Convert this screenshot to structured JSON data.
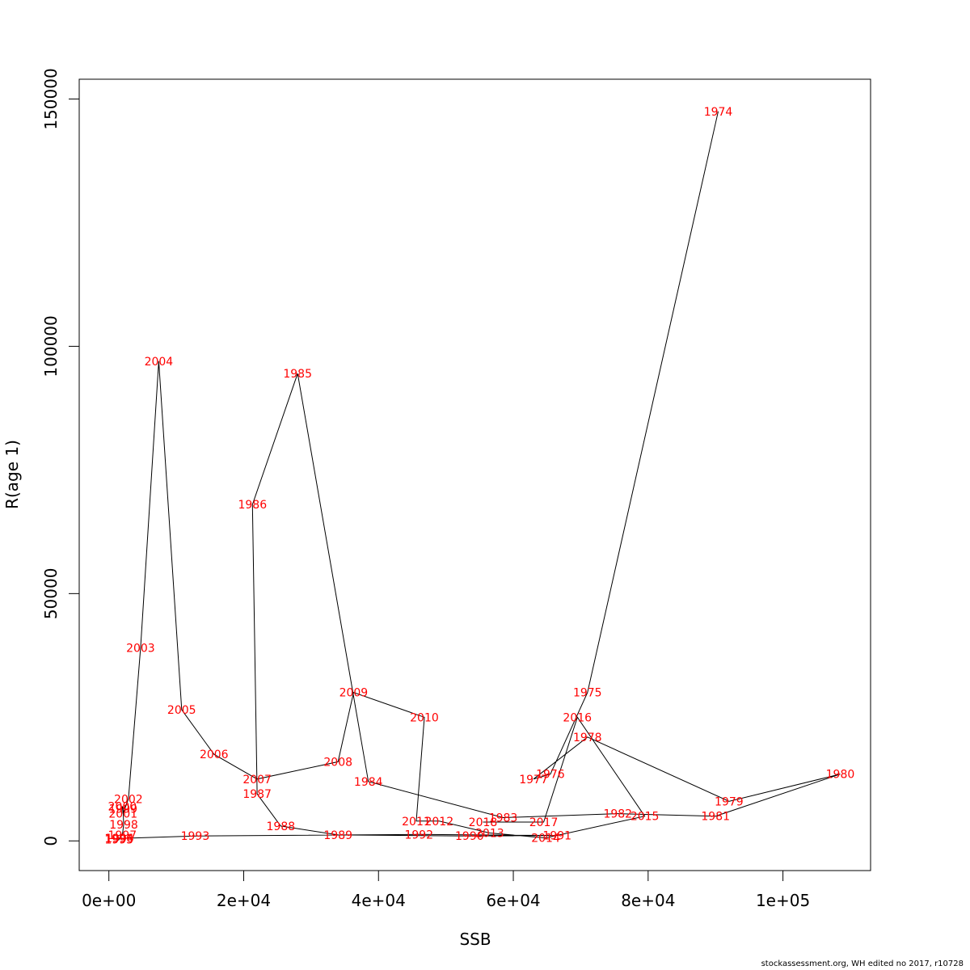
{
  "chart_data": {
    "type": "line",
    "title": "",
    "xlabel": "SSB",
    "ylabel": "R(age 1)",
    "xlim": [
      -4400,
      113000
    ],
    "ylim": [
      -6000,
      154000
    ],
    "x_ticks": [
      0,
      20000,
      40000,
      60000,
      80000,
      100000
    ],
    "x_tick_labels": [
      "0e+00",
      "2e+04",
      "4e+04",
      "6e+04",
      "8e+04",
      "1e+05"
    ],
    "y_ticks": [
      0,
      50000,
      100000,
      150000
    ],
    "y_tick_labels": [
      "0",
      "50000",
      "100000",
      "150000"
    ],
    "label_color": "#ff0000",
    "line_color": "#000000",
    "grid": false,
    "series": [
      {
        "points": [
          {
            "label": "1974",
            "x": 90400,
            "y": 147500
          },
          {
            "label": "1975",
            "x": 71000,
            "y": 30000
          },
          {
            "label": "1976",
            "x": 65500,
            "y": 13500
          },
          {
            "label": "1977",
            "x": 63000,
            "y": 12500
          },
          {
            "label": "1978",
            "x": 71000,
            "y": 21000
          },
          {
            "label": "1979",
            "x": 92000,
            "y": 8000
          },
          {
            "label": "1980",
            "x": 108500,
            "y": 13500
          },
          {
            "label": "1981",
            "x": 90000,
            "y": 5000
          },
          {
            "label": "1982",
            "x": 75500,
            "y": 5500
          },
          {
            "label": "1983",
            "x": 58500,
            "y": 4700
          },
          {
            "label": "1984",
            "x": 38500,
            "y": 12000
          },
          {
            "label": "1985",
            "x": 28000,
            "y": 94500
          },
          {
            "label": "1986",
            "x": 21300,
            "y": 68000
          },
          {
            "label": "1987",
            "x": 22000,
            "y": 9500
          },
          {
            "label": "1988",
            "x": 25500,
            "y": 3000
          },
          {
            "label": "1989",
            "x": 34000,
            "y": 1200
          },
          {
            "label": "1990",
            "x": 53500,
            "y": 1000
          },
          {
            "label": "1991",
            "x": 66500,
            "y": 1100
          },
          {
            "label": "1992",
            "x": 46000,
            "y": 1300
          },
          {
            "label": "1993",
            "x": 12800,
            "y": 1000
          },
          {
            "label": "1994",
            "x": 1600,
            "y": 500
          },
          {
            "label": "1995",
            "x": 1500,
            "y": 300
          },
          {
            "label": "1996",
            "x": 1500,
            "y": 500
          },
          {
            "label": "1997",
            "x": 2000,
            "y": 1200
          },
          {
            "label": "1998",
            "x": 2200,
            "y": 3300
          },
          {
            "label": "1999",
            "x": 2100,
            "y": 6500
          },
          {
            "label": "2000",
            "x": 2000,
            "y": 7000
          },
          {
            "label": "2001",
            "x": 2100,
            "y": 5500
          },
          {
            "label": "2002",
            "x": 2900,
            "y": 8500
          },
          {
            "label": "2003",
            "x": 4700,
            "y": 39000
          },
          {
            "label": "2004",
            "x": 7400,
            "y": 97000
          },
          {
            "label": "2005",
            "x": 10800,
            "y": 26500
          },
          {
            "label": "2006",
            "x": 15600,
            "y": 17500
          },
          {
            "label": "2007",
            "x": 22000,
            "y": 12500
          },
          {
            "label": "2008",
            "x": 34000,
            "y": 16000
          },
          {
            "label": "2009",
            "x": 36300,
            "y": 30000
          },
          {
            "label": "2010",
            "x": 46800,
            "y": 25000
          },
          {
            "label": "2011",
            "x": 45600,
            "y": 4000
          },
          {
            "label": "2012",
            "x": 49000,
            "y": 4000
          },
          {
            "label": "2013",
            "x": 56500,
            "y": 1600
          },
          {
            "label": "2014",
            "x": 64800,
            "y": 600
          },
          {
            "label": "2015",
            "x": 79500,
            "y": 5000
          },
          {
            "label": "2016",
            "x": 69500,
            "y": 25000
          },
          {
            "label": "2017",
            "x": 64500,
            "y": 3800
          },
          {
            "label": "2018",
            "x": 55500,
            "y": 3800
          }
        ]
      }
    ]
  },
  "footer": {
    "text": "stockassessment.org, WH  edited  no  2017, r10728"
  }
}
